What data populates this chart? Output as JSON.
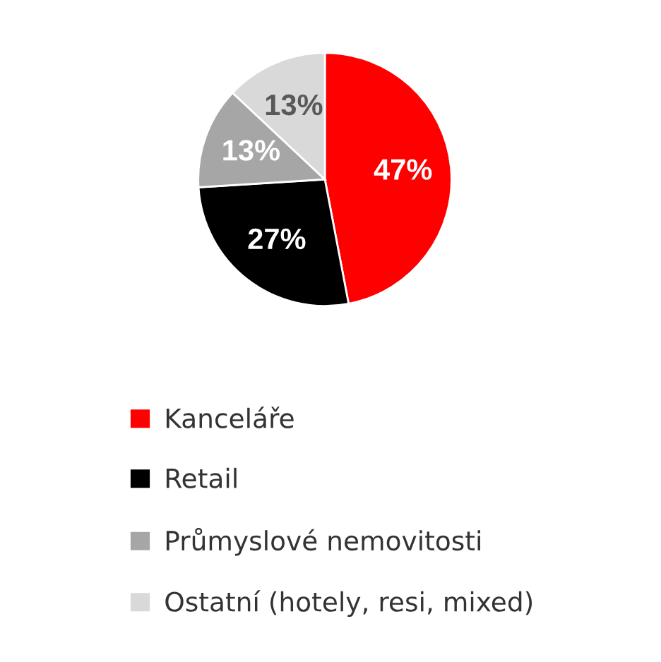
{
  "chart_data": {
    "type": "pie",
    "categories": [
      "Kanceláře",
      "Retail",
      "Průmyslové nemovitosti",
      "Ostatní (hotely, resi, mixed)"
    ],
    "values": [
      47,
      27,
      13,
      13
    ],
    "colors": [
      "#ff0000",
      "#000000",
      "#a6a6a6",
      "#d9d9d9"
    ],
    "value_labels": [
      "47%",
      "27%",
      "13%",
      "13%"
    ],
    "legend": "bottom"
  }
}
